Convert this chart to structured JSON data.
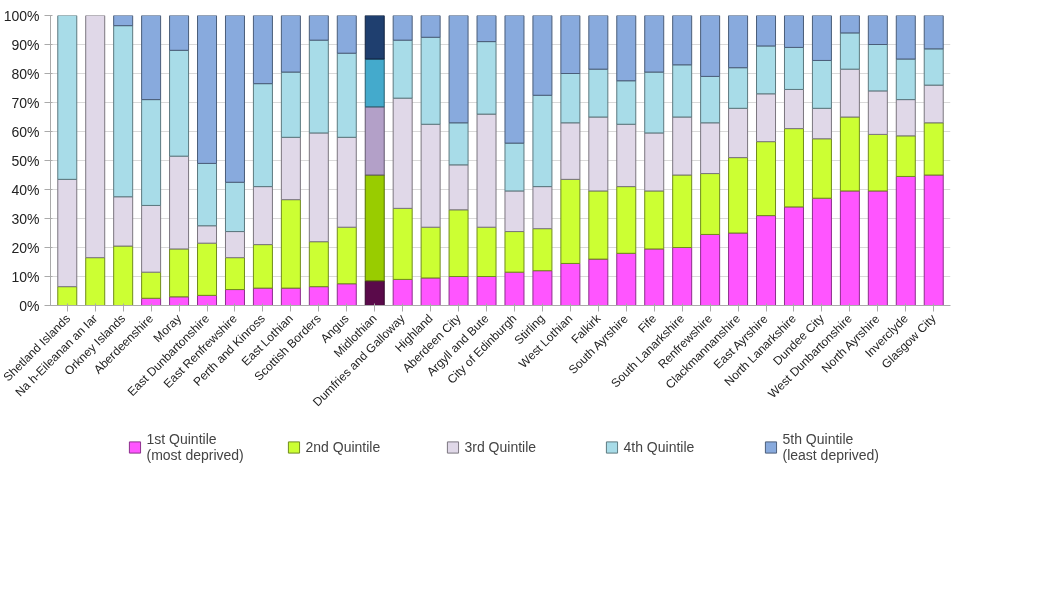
{
  "chart_data": {
    "type": "bar",
    "stacked": true,
    "categories": [
      "Shetland Islands",
      "Na h-Eileanan an Iar",
      "Orkney Islands",
      "Aberdeenshire",
      "Moray",
      "East Dunbartonshire",
      "East Renfrewshire",
      "Perth and Kinross",
      "East Lothian",
      "Scottish Borders",
      "Angus",
      "Midlothian",
      "Dumfries and Galloway",
      "Highland",
      "Aberdeen City",
      "Argyll and Bute",
      "City of Edinburgh",
      "Stirling",
      "West Lothian",
      "Falkirk",
      "South Ayrshire",
      "Fife",
      "South Lanarkshire",
      "Renfrewshire",
      "Clackmannanshire",
      "East Ayrshire",
      "North Lanarkshire",
      "Dundee City",
      "West Dunbartonshire",
      "North Ayrshire",
      "Inverclyde",
      "Glasgow City"
    ],
    "series": [
      {
        "name": "1st Quintile\n(most deprived)",
        "color": "#ff55ff",
        "colors": [
          "#ff55ff",
          "#ff55ff",
          "#ff55ff",
          "#ff55ff",
          "#ff55ff",
          "#ff55ff",
          "#ff55ff",
          "#ff55ff",
          "#ff55ff",
          "#ff55ff",
          "#ff55ff",
          "#5a0a4a",
          "#ff55ff",
          "#ff55ff",
          "#ff55ff",
          "#ff55ff",
          "#ff55ff",
          "#ff55ff",
          "#ff55ff",
          "#ff55ff",
          "#ff55ff",
          "#ff55ff",
          "#ff55ff",
          "#ff55ff",
          "#ff55ff",
          "#ff55ff",
          "#ff55ff",
          "#ff55ff",
          "#ff55ff",
          "#ff55ff",
          "#ff55ff",
          "#ff55ff"
        ],
        "values": [
          0,
          0,
          0,
          2.5,
          3,
          3.5,
          5.5,
          6,
          6,
          6.5,
          7.5,
          8.5,
          9,
          9.5,
          10,
          10,
          11.5,
          12,
          14.5,
          16,
          18,
          19.5,
          20,
          24.5,
          25,
          31,
          34,
          37,
          39.5,
          39.5,
          44.5,
          45
        ]
      },
      {
        "name": "2nd Quintile",
        "color": "#ccff33",
        "colors": [
          "#ccff33",
          "#ccff33",
          "#ccff33",
          "#ccff33",
          "#ccff33",
          "#ccff33",
          "#ccff33",
          "#ccff33",
          "#ccff33",
          "#ccff33",
          "#ccff33",
          "#99cc00",
          "#ccff33",
          "#ccff33",
          "#ccff33",
          "#ccff33",
          "#ccff33",
          "#ccff33",
          "#ccff33",
          "#ccff33",
          "#ccff33",
          "#ccff33",
          "#ccff33",
          "#ccff33",
          "#ccff33",
          "#ccff33",
          "#ccff33",
          "#ccff33",
          "#ccff33",
          "#ccff33",
          "#ccff33",
          "#ccff33"
        ],
        "values": [
          6.5,
          16.5,
          20.5,
          9,
          16.5,
          18,
          11,
          15,
          30.5,
          15.5,
          19.5,
          36.5,
          24.5,
          17.5,
          23,
          17,
          14,
          14.5,
          29,
          23.5,
          23,
          20,
          25,
          21,
          26,
          25.5,
          27,
          20.5,
          25.5,
          19.5,
          14,
          18
        ]
      },
      {
        "name": "3rd Quintile",
        "color": "#e0d8e8",
        "colors": [
          "#e0d8e8",
          "#e0d8e8",
          "#e0d8e8",
          "#e0d8e8",
          "#e0d8e8",
          "#e0d8e8",
          "#e0d8e8",
          "#e0d8e8",
          "#e0d8e8",
          "#e0d8e8",
          "#e0d8e8",
          "#b3a0c8",
          "#e0d8e8",
          "#e0d8e8",
          "#e0d8e8",
          "#e0d8e8",
          "#e0d8e8",
          "#e0d8e8",
          "#e0d8e8",
          "#e0d8e8",
          "#e0d8e8",
          "#e0d8e8",
          "#e0d8e8",
          "#e0d8e8",
          "#e0d8e8",
          "#e0d8e8",
          "#e0d8e8",
          "#e0d8e8",
          "#e0d8e8",
          "#e0d8e8",
          "#e0d8e8",
          "#e0d8e8"
        ],
        "values": [
          37,
          83.5,
          17,
          23,
          32,
          6,
          9,
          20,
          21.5,
          37.5,
          31,
          23.5,
          38,
          35.5,
          15.5,
          39,
          14,
          14.5,
          19.5,
          25.5,
          21.5,
          20,
          20,
          17.5,
          17,
          16.5,
          13.5,
          10.5,
          16.5,
          15,
          12.5,
          13
        ]
      },
      {
        "name": "4th Quintile",
        "color": "#a8dce8",
        "colors": [
          "#a8dce8",
          "#a8dce8",
          "#a8dce8",
          "#a8dce8",
          "#a8dce8",
          "#a8dce8",
          "#a8dce8",
          "#a8dce8",
          "#a8dce8",
          "#a8dce8",
          "#a8dce8",
          "#44aacc",
          "#a8dce8",
          "#a8dce8",
          "#a8dce8",
          "#a8dce8",
          "#a8dce8",
          "#a8dce8",
          "#a8dce8",
          "#a8dce8",
          "#a8dce8",
          "#a8dce8",
          "#a8dce8",
          "#a8dce8",
          "#a8dce8",
          "#a8dce8",
          "#a8dce8",
          "#a8dce8",
          "#a8dce8",
          "#a8dce8",
          "#a8dce8",
          "#a8dce8"
        ],
        "values": [
          56.5,
          0,
          59,
          36.5,
          36.5,
          21.5,
          17,
          35.5,
          22.5,
          32,
          29,
          16.5,
          20,
          30,
          14.5,
          25,
          16.5,
          31.5,
          17,
          16.5,
          15,
          21,
          18,
          16,
          14,
          16.5,
          14.5,
          16.5,
          12.5,
          16,
          14,
          12.5
        ]
      },
      {
        "name": "5th Quintile\n(least deprived)",
        "color": "#88aadd",
        "colors": [
          "#88aadd",
          "#88aadd",
          "#88aadd",
          "#88aadd",
          "#88aadd",
          "#88aadd",
          "#88aadd",
          "#88aadd",
          "#88aadd",
          "#88aadd",
          "#88aadd",
          "#1f3f6f",
          "#88aadd",
          "#88aadd",
          "#88aadd",
          "#88aadd",
          "#88aadd",
          "#88aadd",
          "#88aadd",
          "#88aadd",
          "#88aadd",
          "#88aadd",
          "#88aadd",
          "#88aadd",
          "#88aadd",
          "#88aadd",
          "#88aadd",
          "#88aadd",
          "#88aadd",
          "#88aadd",
          "#88aadd",
          "#88aadd"
        ],
        "values": [
          0,
          0,
          3.5,
          29,
          12,
          51,
          57.5,
          23.5,
          19.5,
          8.5,
          13,
          15,
          8.5,
          7.5,
          37,
          9,
          44,
          27.5,
          20,
          18.5,
          22.5,
          19.5,
          17,
          21,
          18,
          10.5,
          11,
          15.5,
          6,
          10,
          15,
          11.5
        ]
      }
    ],
    "ylim": [
      0,
      100
    ],
    "yticks": [
      {
        "value": 0,
        "label": "0%"
      },
      {
        "value": 10,
        "label": "10%"
      },
      {
        "value": 20,
        "label": "20%"
      },
      {
        "value": 30,
        "label": "30%"
      },
      {
        "value": 40,
        "label": "40%"
      },
      {
        "value": 50,
        "label": "50%"
      },
      {
        "value": 60,
        "label": "60%"
      },
      {
        "value": 70,
        "label": "70%"
      },
      {
        "value": 80,
        "label": "80%"
      },
      {
        "value": 90,
        "label": "90%"
      },
      {
        "value": 100,
        "label": "100%"
      }
    ],
    "grid": "y",
    "legend": "bottom"
  }
}
